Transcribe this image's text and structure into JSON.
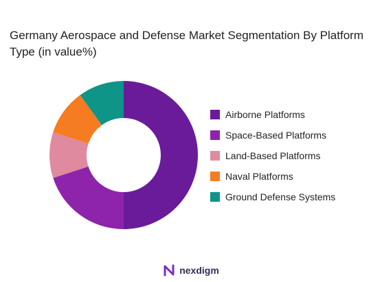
{
  "title": "Germany Aerospace and Defense Market Segmentation By Platform Type (in value%)",
  "brand": {
    "name": "nexdigm",
    "logo_icon": "nexdigm-logo-icon"
  },
  "colors": {
    "airborne": "#6a1b9a",
    "space": "#8e24aa",
    "land": "#e08aa0",
    "naval": "#f57c20",
    "ground": "#0f9488",
    "brand": "#7b2cbf"
  },
  "chart_data": {
    "type": "pie",
    "variant": "donut",
    "title": "Germany Aerospace and Defense Market Segmentation By Platform Type (in value%)",
    "legend_position": "right",
    "categories": [
      "Airborne Platforms",
      "Space-Based Platforms",
      "Land-Based Platforms",
      "Naval Platforms",
      "Ground Defense Systems"
    ],
    "values": [
      50,
      20,
      10,
      10,
      10
    ],
    "colors": [
      "#6a1b9a",
      "#8e24aa",
      "#e08aa0",
      "#f57c20",
      "#0f9488"
    ]
  }
}
